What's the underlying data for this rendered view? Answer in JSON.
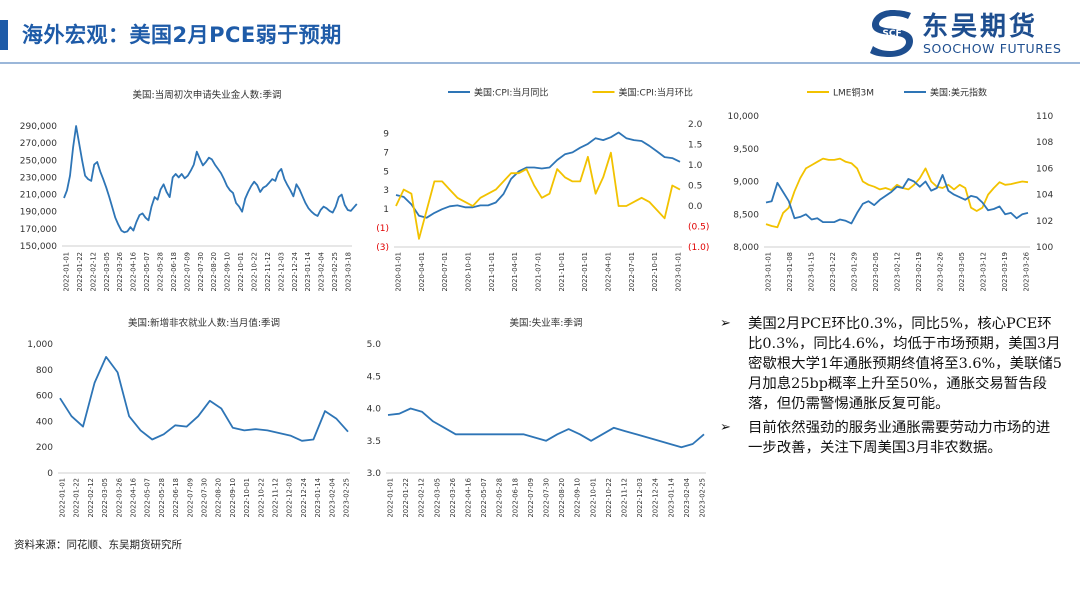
{
  "header": {
    "title": "海外宏观：美国2月PCE弱于预期",
    "logo_cn": "东吴期货",
    "logo_en": "SOOCHOW FUTURES",
    "logo_mark_text": "SCF"
  },
  "colors": {
    "blue": "#2e75b6",
    "gold": "#f2c200",
    "neg": "#e00000",
    "accent": "#1e5ba8"
  },
  "notes": [
    "美国2月PCE环比0.3%，同比5%，核心PCE环比0.3%，同比4.6%，均低于市场预期，美国3月密歇根大学1年通胀预期终值将至3.6%，美联储5月加息25bp概率上升至50%，通胀交易暂告段落，但仍需警惕通胀反复可能。",
    "目前依然强劲的服务业通胀需要劳动力市场的进一步改善，关注下周美国3月非农数据。"
  ],
  "source": "资料来源：同花顺、东吴期货研究所",
  "chart_data": [
    {
      "id": "claims",
      "type": "line",
      "title": "美国:当周初次申请失业金人数:季调",
      "ylim": [
        150000,
        290000
      ],
      "yticks": [
        "150,000",
        "170,000",
        "190,000",
        "210,000",
        "230,000",
        "250,000",
        "270,000",
        "290,000"
      ],
      "x_ticks": [
        "2022-01-01",
        "2022-01-22",
        "2022-02-12",
        "2022-03-05",
        "2022-03-26",
        "2022-04-16",
        "2022-05-07",
        "2022-05-28",
        "2022-06-18",
        "2022-07-09",
        "2022-07-30",
        "2022-08-20",
        "2022-09-10",
        "2022-10-01",
        "2022-10-22",
        "2022-11-12",
        "2022-12-03",
        "2022-12-24",
        "2023-01-14",
        "2023-02-04",
        "2023-02-25",
        "2023-03-18"
      ],
      "series": [
        {
          "name": "",
          "color": "#2e75b6",
          "x_range": [
            0,
            21.5
          ],
          "values": [
            206000,
            215000,
            232000,
            265000,
            290000,
            270000,
            250000,
            232000,
            228000,
            226000,
            245000,
            248000,
            237000,
            228000,
            218000,
            207000,
            195000,
            183000,
            175000,
            168000,
            166000,
            167000,
            172000,
            168000,
            178000,
            186000,
            188000,
            183000,
            180000,
            196000,
            207000,
            204000,
            216000,
            222000,
            213000,
            207000,
            230000,
            234000,
            230000,
            234000,
            229000,
            232000,
            238000,
            245000,
            260000,
            252000,
            244000,
            248000,
            253000,
            251000,
            245000,
            240000,
            235000,
            228000,
            220000,
            215000,
            212000,
            200000,
            196000,
            190000,
            205000,
            213000,
            220000,
            225000,
            221000,
            213000,
            218000,
            220000,
            224000,
            228000,
            226000,
            236000,
            240000,
            228000,
            221000,
            215000,
            208000,
            222000,
            216000,
            208000,
            200000,
            194000,
            190000,
            187000,
            185000,
            192000,
            196000,
            194000,
            191000,
            189000,
            196000,
            207000,
            210000,
            198000,
            192000,
            191000,
            195000,
            199000
          ]
        }
      ]
    },
    {
      "id": "cpi",
      "type": "line",
      "title": "",
      "ylim_left": [
        -3,
        10
      ],
      "yticks_left": [
        "(3)",
        "(1)",
        "1",
        "3",
        "5",
        "7",
        "9"
      ],
      "ylim_right": [
        -1.0,
        2.0
      ],
      "yticks_right": [
        "(1.0)",
        "(0.5)",
        "0.0",
        "0.5",
        "1.0",
        "1.5",
        "2.0"
      ],
      "x_ticks": [
        "2020-01-01",
        "2020-04-01",
        "2020-07-01",
        "2020-10-01",
        "2021-01-01",
        "2021-04-01",
        "2021-07-01",
        "2021-10-01",
        "2022-01-01",
        "2022-04-01",
        "2022-07-01",
        "2022-10-01",
        "2023-01-01"
      ],
      "series": [
        {
          "name": "美国:CPI:当月同比",
          "axis": "left",
          "color": "#2e75b6",
          "values": [
            2.5,
            2.3,
            1.5,
            0.3,
            0.1,
            0.6,
            1.0,
            1.3,
            1.4,
            1.2,
            1.2,
            1.4,
            1.4,
            1.7,
            2.6,
            4.2,
            5.0,
            5.4,
            5.4,
            5.3,
            5.4,
            6.2,
            6.8,
            7.0,
            7.5,
            7.9,
            8.5,
            8.3,
            8.6,
            9.1,
            8.5,
            8.3,
            8.2,
            7.7,
            7.1,
            6.5,
            6.4,
            6.0
          ]
        },
        {
          "name": "美国:CPI:当月环比",
          "axis": "right",
          "color": "#f2c200",
          "values": [
            0.0,
            0.4,
            0.3,
            -0.8,
            -0.1,
            0.6,
            0.6,
            0.4,
            0.2,
            0.1,
            0.0,
            0.2,
            0.3,
            0.4,
            0.6,
            0.8,
            0.8,
            0.9,
            0.5,
            0.2,
            0.3,
            0.9,
            0.7,
            0.6,
            0.6,
            1.2,
            0.3,
            0.7,
            1.3,
            0.0,
            0.0,
            0.1,
            0.2,
            0.1,
            -0.1,
            -0.3,
            0.5,
            0.4
          ]
        }
      ]
    },
    {
      "id": "lme",
      "type": "line",
      "title": "",
      "ylim_left": [
        8000,
        10000
      ],
      "yticks_left": [
        "8,000",
        "8,500",
        "9,000",
        "9,500",
        "10,000"
      ],
      "ylim_right": [
        100,
        110
      ],
      "yticks_right": [
        "100",
        "102",
        "104",
        "106",
        "108",
        "110"
      ],
      "x_ticks": [
        "2023-01-01",
        "2023-01-08",
        "2023-01-15",
        "2023-01-22",
        "2023-01-29",
        "2023-02-05",
        "2023-02-12",
        "2023-02-19",
        "2023-02-26",
        "2023-03-05",
        "2023-03-12",
        "2023-03-19",
        "2023-03-26"
      ],
      "series": [
        {
          "name": "LME铜3M",
          "axis": "left",
          "color": "#f2c200",
          "values": [
            8350,
            8320,
            8300,
            8520,
            8600,
            8850,
            9050,
            9200,
            9250,
            9300,
            9350,
            9330,
            9330,
            9350,
            9300,
            9280,
            9200,
            9000,
            8950,
            8920,
            8880,
            8900,
            8870,
            8950,
            8900,
            8880,
            8950,
            9050,
            9200,
            9000,
            8920,
            8900,
            8950,
            8880,
            8950,
            8900,
            8600,
            8550,
            8600,
            8800,
            8900,
            8990,
            8950,
            8960,
            8980,
            9000,
            8990
          ]
        },
        {
          "name": "美国:美元指数",
          "axis": "right",
          "color": "#2e75b6",
          "values": [
            103.4,
            103.5,
            104.9,
            104.2,
            103.5,
            102.2,
            102.3,
            102.5,
            102.1,
            102.2,
            101.9,
            101.9,
            101.9,
            102.1,
            102.0,
            101.8,
            102.6,
            103.3,
            103.5,
            103.2,
            103.6,
            103.9,
            104.2,
            104.6,
            104.5,
            105.2,
            105.0,
            104.6,
            105.0,
            104.3,
            104.5,
            105.5,
            104.3,
            104.0,
            103.8,
            103.6,
            103.9,
            103.8,
            103.4,
            102.8,
            102.9,
            103.1,
            102.5,
            102.6,
            102.2,
            102.5,
            102.6
          ]
        }
      ]
    },
    {
      "id": "nfp",
      "type": "line",
      "title": "美国:新增非农就业人数:当月值:季调",
      "ylim": [
        0,
        1000
      ],
      "yticks": [
        "0",
        "200",
        "400",
        "600",
        "800",
        "1,000"
      ],
      "x_ticks": [
        "2022-01-01",
        "2022-01-22",
        "2022-02-12",
        "2022-03-05",
        "2022-03-26",
        "2022-04-16",
        "2022-05-07",
        "2022-05-28",
        "2022-06-18",
        "2022-07-09",
        "2022-07-30",
        "2022-08-20",
        "2022-09-10",
        "2022-10-01",
        "2022-10-22",
        "2022-11-12",
        "2022-12-03",
        "2022-12-24",
        "2023-01-14",
        "2023-02-04",
        "2023-02-25"
      ],
      "series": [
        {
          "name": "",
          "color": "#2e75b6",
          "values": [
            580,
            440,
            360,
            700,
            900,
            780,
            440,
            330,
            260,
            300,
            370,
            360,
            440,
            560,
            500,
            350,
            330,
            340,
            330,
            310,
            290,
            250,
            260,
            480,
            420,
            320
          ]
        }
      ]
    },
    {
      "id": "unemp",
      "type": "line",
      "title": "美国:失业率:季调",
      "ylim": [
        3.0,
        5.0
      ],
      "yticks": [
        "3.0",
        "3.5",
        "4.0",
        "4.5",
        "5.0"
      ],
      "x_ticks": [
        "2022-01-01",
        "2022-01-22",
        "2022-02-12",
        "2022-03-05",
        "2022-03-26",
        "2022-04-16",
        "2022-05-07",
        "2022-05-28",
        "2022-06-18",
        "2022-07-09",
        "2022-07-30",
        "2022-08-20",
        "2022-09-10",
        "2022-10-01",
        "2022-10-22",
        "2022-11-12",
        "2022-12-03",
        "2022-12-24",
        "2023-01-14",
        "2023-02-04",
        "2023-02-25"
      ],
      "series": [
        {
          "name": "",
          "color": "#2e75b6",
          "values": [
            3.9,
            3.92,
            4.0,
            3.95,
            3.8,
            3.7,
            3.6,
            3.6,
            3.6,
            3.6,
            3.6,
            3.6,
            3.6,
            3.55,
            3.5,
            3.6,
            3.68,
            3.6,
            3.5,
            3.6,
            3.7,
            3.65,
            3.6,
            3.55,
            3.5,
            3.45,
            3.4,
            3.45,
            3.6
          ]
        }
      ]
    }
  ]
}
